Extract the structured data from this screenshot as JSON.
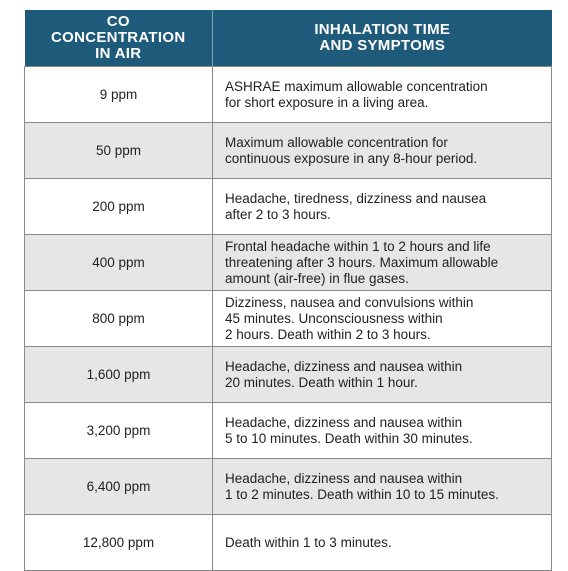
{
  "header": {
    "col1": "CO\nCONCENTRATION\nIN AIR",
    "col2": "INHALATION TIME\nAND SYMPTOMS"
  },
  "rows": [
    {
      "concentration": "9 ppm",
      "symptoms": "ASHRAE maximum allowable concentration\nfor short exposure in a living area."
    },
    {
      "concentration": "50 ppm",
      "symptoms": "Maximum allowable concentration for\ncontinuous exposure in any 8-hour period."
    },
    {
      "concentration": "200 ppm",
      "symptoms": "Headache, tiredness, dizziness and nausea\nafter 2 to 3 hours."
    },
    {
      "concentration": "400 ppm",
      "symptoms": "Frontal headache within 1 to 2 hours and life\nthreatening after 3 hours. Maximum allowable\namount (air-free) in flue gases."
    },
    {
      "concentration": "800 ppm",
      "symptoms": "Dizziness, nausea and convulsions within\n45 minutes. Unconsciousness within\n2 hours. Death within 2 to 3 hours."
    },
    {
      "concentration": "1,600 ppm",
      "symptoms": "Headache, dizziness and nausea within\n20 minutes. Death within 1 hour."
    },
    {
      "concentration": "3,200 ppm",
      "symptoms": "Headache, dizziness and nausea within\n5 to 10 minutes. Death within 30 minutes."
    },
    {
      "concentration": "6,400 ppm",
      "symptoms": "Headache, dizziness and nausea within\n1 to 2 minutes. Death within 10 to 15 minutes."
    },
    {
      "concentration": "12,800 ppm",
      "symptoms": "Death within 1 to 3 minutes."
    }
  ],
  "colors": {
    "header_bg": "#1e5a7a",
    "stripe": "#e6e6e7",
    "border": "#8a8a8a"
  }
}
